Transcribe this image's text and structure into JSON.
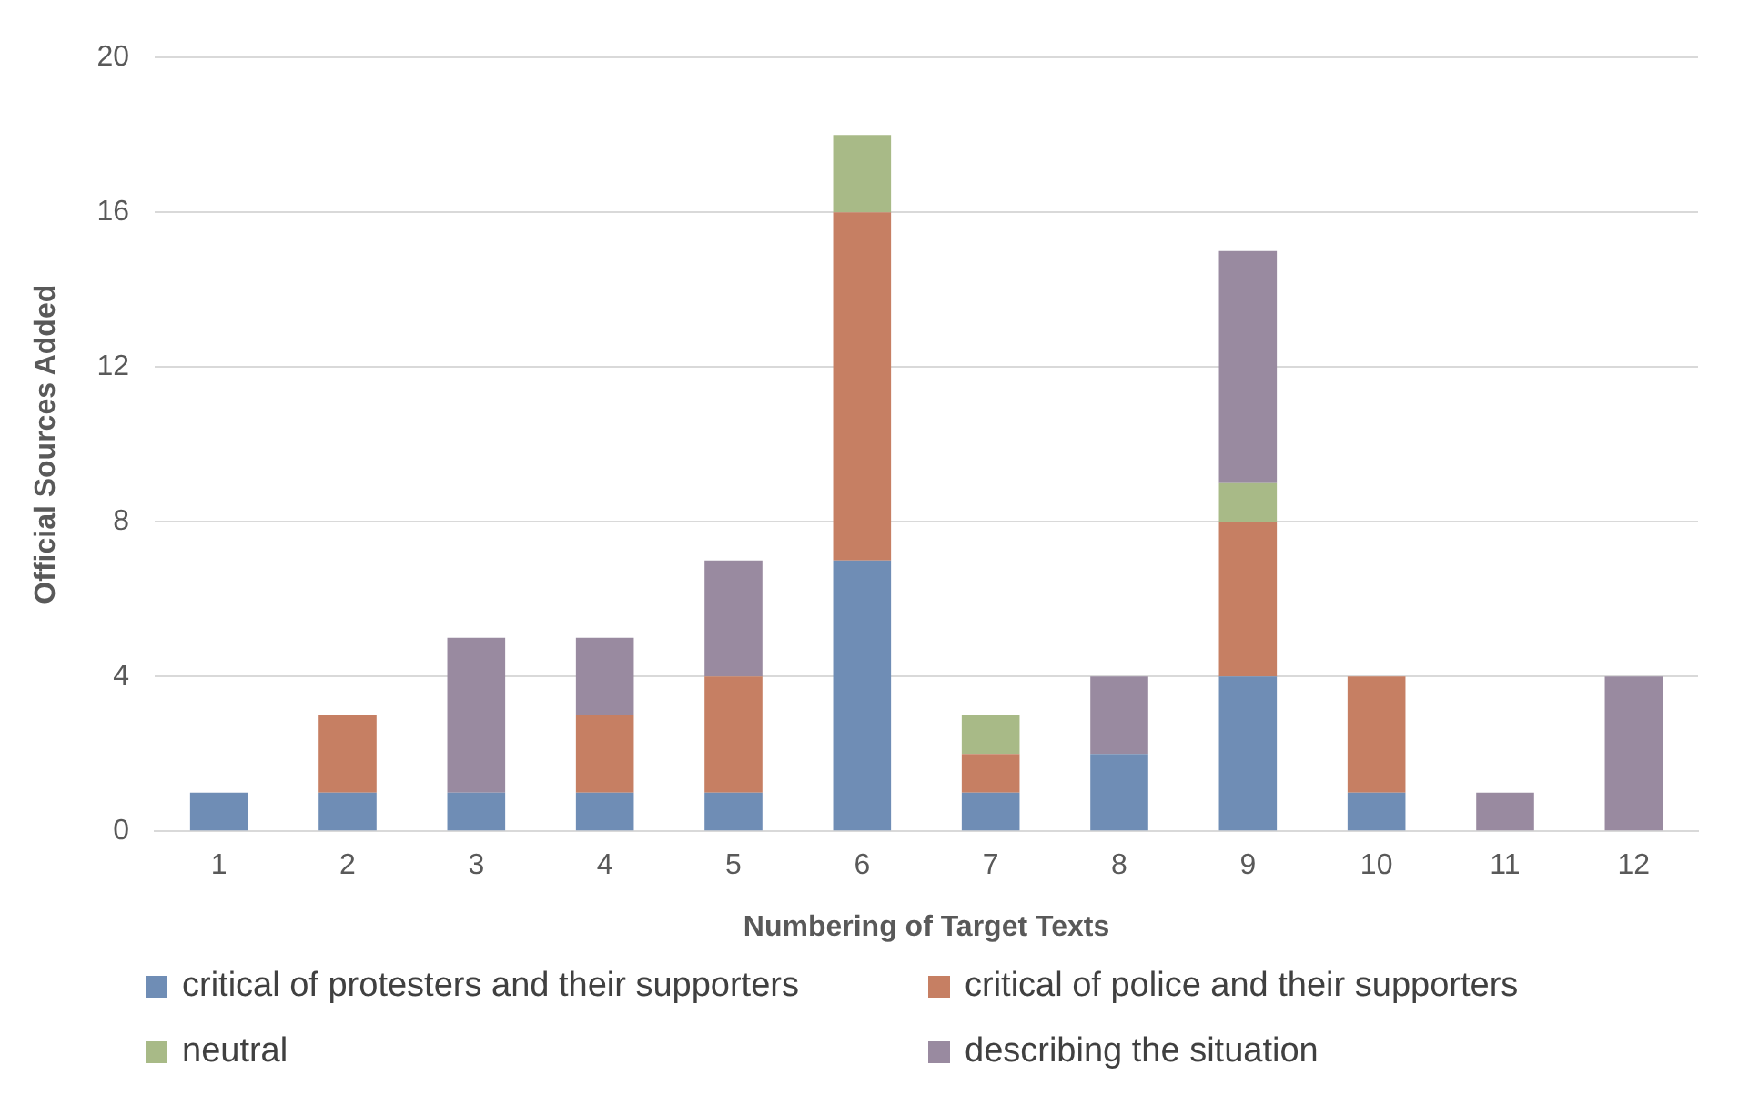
{
  "chart_data": {
    "type": "bar",
    "stacked": true,
    "xlabel": "Numbering of Target Texts",
    "ylabel": "Official Sources Added",
    "categories": [
      "1",
      "2",
      "3",
      "4",
      "5",
      "6",
      "7",
      "8",
      "9",
      "10",
      "11",
      "12"
    ],
    "series": [
      {
        "name": "critical of protesters and their supporters",
        "color": "#6f8db5",
        "values": [
          1,
          1,
          1,
          1,
          1,
          7,
          1,
          2,
          4,
          1,
          0,
          0
        ]
      },
      {
        "name": "critical of police and their supporters",
        "color": "#c67f63",
        "values": [
          0,
          2,
          0,
          2,
          3,
          9,
          1,
          0,
          4,
          3,
          0,
          0
        ]
      },
      {
        "name": "neutral",
        "color": "#a8ba87",
        "values": [
          0,
          0,
          0,
          0,
          0,
          2,
          1,
          0,
          1,
          0,
          0,
          0
        ]
      },
      {
        "name": "describing the situation",
        "color": "#998aa0",
        "values": [
          0,
          0,
          4,
          2,
          3,
          0,
          0,
          2,
          6,
          0,
          1,
          4
        ]
      }
    ],
    "ylim": [
      0,
      20
    ],
    "yticks": [
      0,
      4,
      8,
      12,
      16,
      20
    ],
    "grid": "y",
    "legend": "bottom"
  }
}
